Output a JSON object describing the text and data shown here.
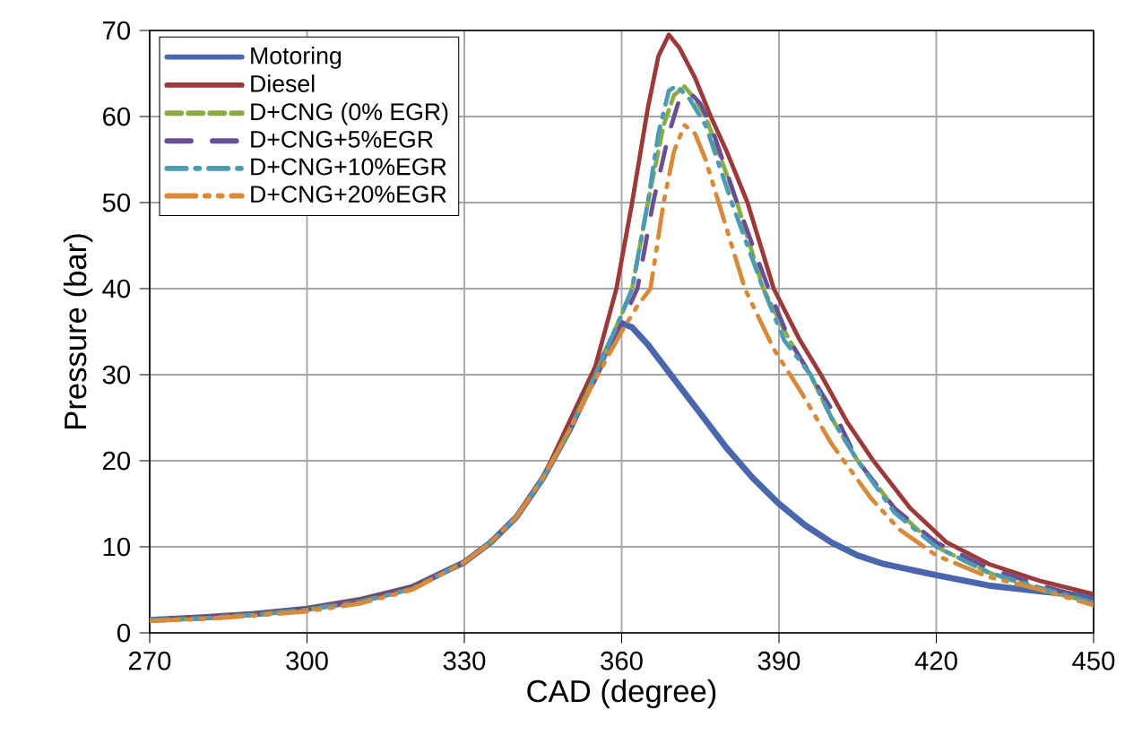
{
  "chart_data": {
    "type": "line",
    "xlabel": "CAD (degree)",
    "ylabel": "Pressure (bar)",
    "xlim": [
      270,
      450
    ],
    "xticks": [
      270,
      300,
      330,
      360,
      390,
      420,
      450
    ],
    "ylim": [
      0,
      70
    ],
    "yticks": [
      0,
      10,
      20,
      30,
      40,
      50,
      60,
      70
    ],
    "grid": true,
    "legend": "top left",
    "marker": "none",
    "series": [
      {
        "name": "Motoring",
        "color": "#4a66ac",
        "line_style": "solid",
        "x": [
          270,
          280,
          290,
          300,
          310,
          320,
          330,
          335,
          340,
          345,
          350,
          355,
          358,
          360,
          362,
          365,
          370,
          375,
          380,
          385,
          390,
          395,
          400,
          405,
          410,
          420,
          430,
          440,
          450
        ],
        "values": [
          1.5,
          1.8,
          2.2,
          2.8,
          3.8,
          5.3,
          8.2,
          10.5,
          13.5,
          18,
          23.5,
          30,
          34,
          36,
          35.5,
          33.5,
          29.5,
          25.5,
          21.5,
          18,
          15,
          12.5,
          10.5,
          9,
          8,
          6.7,
          5.5,
          4.8,
          4.2
        ]
      },
      {
        "name": "Diesel",
        "color": "#9b3a38",
        "line_style": "solid",
        "x": [
          270,
          280,
          290,
          300,
          310,
          320,
          330,
          335,
          340,
          345,
          350,
          355,
          359,
          362,
          365,
          367,
          369,
          371,
          374,
          377,
          380,
          384,
          389,
          394,
          398,
          403,
          408,
          415,
          422,
          430,
          440,
          450
        ],
        "values": [
          1.5,
          1.8,
          2.2,
          2.8,
          3.8,
          5.3,
          8.2,
          10.5,
          13.5,
          18,
          24.5,
          31,
          40,
          50,
          61,
          67,
          69.5,
          68,
          64.5,
          60,
          56,
          50,
          40,
          34,
          30,
          24.5,
          20,
          14.5,
          10.5,
          8,
          6,
          4.5
        ]
      },
      {
        "name": "D+CNG (0% EGR)",
        "color": "#8aac46",
        "line_style": "dashed",
        "x": [
          270,
          280,
          290,
          300,
          310,
          320,
          330,
          335,
          340,
          345,
          350,
          355,
          360,
          362,
          365,
          368,
          370,
          372,
          374,
          376,
          382,
          387,
          392,
          396,
          400,
          405,
          412,
          420,
          430,
          440,
          450
        ],
        "values": [
          1.4,
          1.7,
          2.1,
          2.7,
          3.6,
          5.1,
          8.2,
          10.5,
          13.5,
          18,
          23.5,
          30,
          37,
          40,
          50,
          59,
          62.5,
          63.5,
          62,
          60,
          50,
          40,
          34,
          30,
          25,
          20,
          14.5,
          10,
          7,
          5,
          3.5
        ]
      },
      {
        "name": "D+CNG+5%EGR",
        "color": "#6a4f96",
        "line_style": "dashed",
        "x": [
          270,
          280,
          290,
          300,
          310,
          320,
          330,
          335,
          340,
          345,
          350,
          355,
          360,
          363,
          366,
          369,
          371,
          373,
          375,
          377,
          382,
          388,
          392,
          397,
          401,
          405,
          412,
          420,
          430,
          440,
          450
        ],
        "values": [
          1.5,
          1.7,
          2.1,
          2.7,
          3.6,
          5.1,
          8.2,
          10.5,
          13.5,
          18,
          23.5,
          29.5,
          36,
          40,
          50,
          58,
          62,
          62.8,
          61.5,
          59,
          50,
          40,
          34,
          29,
          25,
          20,
          14.5,
          10.5,
          7.5,
          5.5,
          3.8
        ]
      },
      {
        "name": "D+CNG+10%EGR",
        "color": "#4c9bb5",
        "line_style": "dashed",
        "x": [
          270,
          280,
          290,
          300,
          310,
          320,
          330,
          335,
          340,
          345,
          350,
          355,
          360,
          362,
          365,
          367,
          369,
          370.5,
          373,
          376,
          381,
          387,
          391,
          396,
          400,
          405,
          412,
          420,
          430,
          440,
          450
        ],
        "values": [
          1.5,
          1.7,
          2.1,
          2.7,
          3.6,
          5.1,
          8.2,
          10.5,
          13.5,
          18,
          23.5,
          30,
          37,
          40,
          50,
          58,
          63,
          63.6,
          62,
          59,
          50,
          40,
          34,
          30,
          25,
          20,
          14,
          10,
          7,
          5.2,
          3.5
        ]
      },
      {
        "name": "D+CNG+20%EGR",
        "color": "#d88a3a",
        "line_style": "dashed",
        "x": [
          270,
          280,
          290,
          300,
          310,
          320,
          330,
          335,
          340,
          345,
          350,
          355,
          360,
          363,
          365.5,
          368,
          370,
          372,
          374,
          376,
          378.5,
          383.5,
          389,
          394.5,
          400,
          407.6,
          413,
          420,
          430,
          440,
          450
        ],
        "values": [
          1.4,
          1.6,
          2.0,
          2.5,
          3.4,
          5.0,
          8.2,
          10.5,
          13.5,
          18,
          23.5,
          29.5,
          35,
          38,
          40,
          50,
          56,
          59,
          58,
          55,
          50,
          40,
          33,
          27.7,
          22,
          15.6,
          12,
          9,
          6.5,
          5,
          3.2
        ]
      }
    ]
  }
}
